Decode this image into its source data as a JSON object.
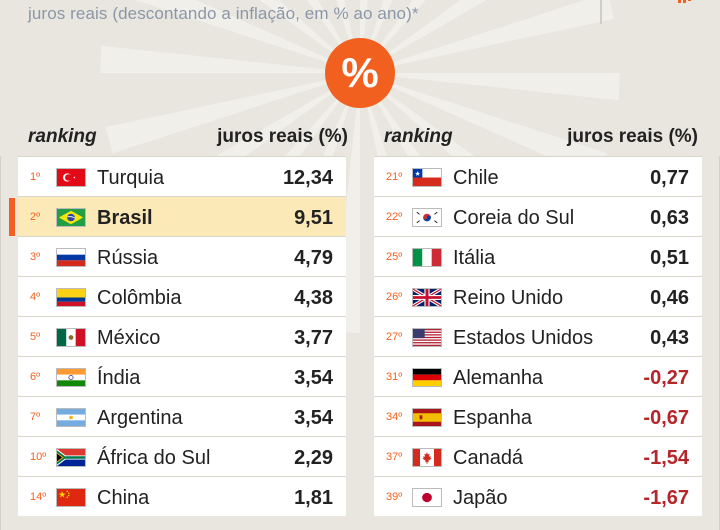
{
  "header": {
    "subtitle": "juros reais (descontando a inflação, em % ao ano)*",
    "badge_symbol": "%"
  },
  "colors": {
    "accent": "#f2601f",
    "highlight": "#fbeab8",
    "negative": "#b5252a",
    "text": "#222222",
    "background": "#e9e6df"
  },
  "chart_data": {
    "type": "table",
    "title": "",
    "subtitle": "juros reais (descontando a inflação, em % ao ano)*",
    "columns": [
      "ranking",
      "juros reais (%)"
    ],
    "highlighted_country": "Brasil",
    "left": [
      {
        "rank": "1º",
        "country": "Turquia",
        "value": "12,34",
        "flag": "turkey-flag"
      },
      {
        "rank": "2º",
        "country": "Brasil",
        "value": "9,51",
        "flag": "brazil-flag"
      },
      {
        "rank": "3º",
        "country": "Rússia",
        "value": "4,79",
        "flag": "russia-flag"
      },
      {
        "rank": "4º",
        "country": "Colômbia",
        "value": "4,38",
        "flag": "colombia-flag"
      },
      {
        "rank": "5º",
        "country": "México",
        "value": "3,77",
        "flag": "mexico-flag"
      },
      {
        "rank": "6º",
        "country": "Índia",
        "value": "3,54",
        "flag": "india-flag"
      },
      {
        "rank": "7º",
        "country": "Argentina",
        "value": "3,54",
        "flag": "argentina-flag"
      },
      {
        "rank": "10º",
        "country": "África do Sul",
        "value": "2,29",
        "flag": "south-africa-flag"
      },
      {
        "rank": "14º",
        "country": "China",
        "value": "1,81",
        "flag": "china-flag"
      }
    ],
    "right": [
      {
        "rank": "21º",
        "country": "Chile",
        "value": "0,77",
        "flag": "chile-flag"
      },
      {
        "rank": "22º",
        "country": "Coreia do Sul",
        "value": "0,63",
        "flag": "south-korea-flag"
      },
      {
        "rank": "25º",
        "country": "Itália",
        "value": "0,51",
        "flag": "italy-flag"
      },
      {
        "rank": "26º",
        "country": "Reino Unido",
        "value": "0,46",
        "flag": "uk-flag"
      },
      {
        "rank": "27º",
        "country": "Estados Unidos",
        "value": "0,43",
        "flag": "usa-flag"
      },
      {
        "rank": "31º",
        "country": "Alemanha",
        "value": "-0,27",
        "flag": "germany-flag"
      },
      {
        "rank": "34º",
        "country": "Espanha",
        "value": "-0,67",
        "flag": "spain-flag"
      },
      {
        "rank": "37º",
        "country": "Canadá",
        "value": "-1,54",
        "flag": "canada-flag"
      },
      {
        "rank": "39º",
        "country": "Japão",
        "value": "-1,67",
        "flag": "japan-flag"
      }
    ]
  }
}
